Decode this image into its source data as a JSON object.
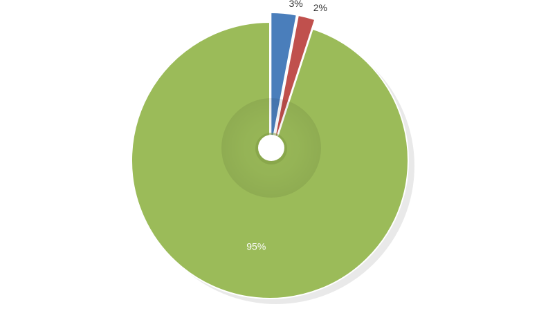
{
  "chart_data": {
    "type": "pie",
    "title": "",
    "slices": [
      {
        "label": "3%",
        "value": 3,
        "color": "#4a7ebb",
        "exploded": true,
        "label_color": "#333333",
        "label_placement": "outside"
      },
      {
        "label": "2%",
        "value": 2,
        "color": "#c0504d",
        "exploded": true,
        "label_color": "#333333",
        "label_placement": "outside"
      },
      {
        "label": "95%",
        "value": 95,
        "color": "#9bbb59",
        "exploded": false,
        "label_color": "#ffffff",
        "label_placement": "inside"
      }
    ],
    "start_angle": "12 o'clock",
    "direction": "clockwise",
    "legend": "none"
  }
}
